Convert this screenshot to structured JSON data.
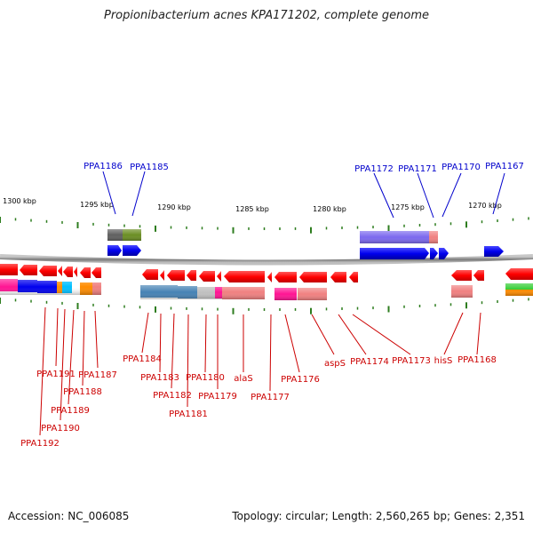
{
  "title": "Propionibacterium acnes KPA171202, complete genome",
  "accession": "Accession: NC_006085",
  "topology": "Topology: circular; Length: 2,560,265 bp; Genes: 2,351",
  "colors": {
    "backbone": "#8e8e8e",
    "tick": "#2e7d1f",
    "red": "#ff0000",
    "blue": "#0000ee",
    "label_red": "#cc0000",
    "label_blue": "#0000cc"
  },
  "scale": [
    {
      "label": "1300 kbp"
    },
    {
      "label": "1295 kbp"
    },
    {
      "label": "1290 kbp"
    },
    {
      "label": "1285 kbp"
    },
    {
      "label": "1280 kbp"
    },
    {
      "label": "1275 kbp"
    },
    {
      "label": "1270 kbp"
    }
  ],
  "top_labels": [
    {
      "name": "PPA1186"
    },
    {
      "name": "PPA1185"
    },
    {
      "name": "PPA1172"
    },
    {
      "name": "PPA1171"
    },
    {
      "name": "PPA1170"
    },
    {
      "name": "PPA1167"
    }
  ],
  "bottom_labels": [
    {
      "name": "PPA1192"
    },
    {
      "name": "PPA1191"
    },
    {
      "name": "PPA1190"
    },
    {
      "name": "PPA1189"
    },
    {
      "name": "PPA1188"
    },
    {
      "name": "PPA1187"
    },
    {
      "name": "PPA1184"
    },
    {
      "name": "PPA1183"
    },
    {
      "name": "PPA1182"
    },
    {
      "name": "PPA1181"
    },
    {
      "name": "PPA1180"
    },
    {
      "name": "PPA1179"
    },
    {
      "name": "alaS"
    },
    {
      "name": "PPA1177"
    },
    {
      "name": "PPA1176"
    },
    {
      "name": "aspS"
    },
    {
      "name": "PPA1174"
    },
    {
      "name": "PPA1173"
    },
    {
      "name": "hisS"
    },
    {
      "name": "PPA1168"
    }
  ]
}
